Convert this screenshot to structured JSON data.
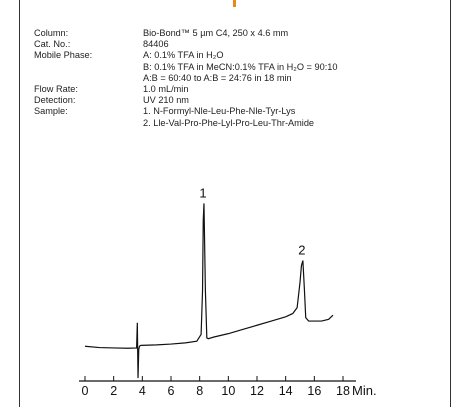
{
  "colors": {
    "accent": "#e88a1a",
    "trace": "#111111",
    "frame": "#333333"
  },
  "info": [
    {
      "label": "Column:",
      "values": [
        "Bio-Bond™ 5 µm C4, 250 x 4.6 mm"
      ]
    },
    {
      "label": "Cat. No.:",
      "values": [
        "84406"
      ]
    },
    {
      "label": "Mobile Phase:",
      "values": [
        "A: 0.1% TFA in H₂O",
        "B: 0.1% TFA in MeCN:0.1% TFA in H₂O = 90:10",
        "A:B = 60:40 to A:B = 24:76 in 18 min"
      ]
    },
    {
      "label": "Flow Rate:",
      "values": [
        "1.0 mL/min"
      ]
    },
    {
      "label": "Detection:",
      "values": [
        "UV 210 nm"
      ]
    },
    {
      "label": "Sample:",
      "values": [
        "1. N-Formyl-Nle-Leu-Phe-Nle-Tyr-Lys",
        "2. Lle-Val-Pro-Phe-Lyl-Pro-Leu-Thr-Amide"
      ]
    }
  ],
  "chart_data": {
    "type": "line",
    "xlabel": "Min.",
    "xlim": [
      0,
      18
    ],
    "ylim": [
      0,
      100
    ],
    "xticks": [
      0,
      2,
      4,
      6,
      8,
      10,
      12,
      14,
      16,
      18
    ],
    "grid": false,
    "series": [
      {
        "x": [
          0,
          1,
          2,
          3,
          3.6,
          3.65,
          3.7,
          3.75,
          3.8,
          3.85,
          3.9,
          4.2,
          5,
          6,
          7,
          7.8,
          8.1,
          8.2,
          8.25,
          8.3,
          8.4,
          8.5,
          8.6,
          9,
          10,
          11,
          12,
          13,
          14,
          14.5,
          14.8,
          15.0,
          15.1,
          15.2,
          15.3,
          15.4,
          15.6,
          16,
          16.5,
          17,
          17.3
        ],
        "y": [
          7,
          6.2,
          6.0,
          5.8,
          6.0,
          21,
          -12,
          5,
          7,
          7.3,
          7.5,
          7.6,
          7.8,
          8.3,
          9.0,
          10,
          14,
          40,
          82,
          92,
          40,
          12,
          11.5,
          12.5,
          14.5,
          17,
          19.5,
          22,
          24.5,
          26.5,
          30,
          45,
          55,
          58,
          42,
          24,
          22,
          22,
          22,
          23,
          25.5
        ]
      }
    ],
    "annotations": [
      {
        "text": "1",
        "x": 8.3,
        "y": 92
      },
      {
        "text": "2",
        "x": 15.2,
        "y": 58
      }
    ]
  }
}
